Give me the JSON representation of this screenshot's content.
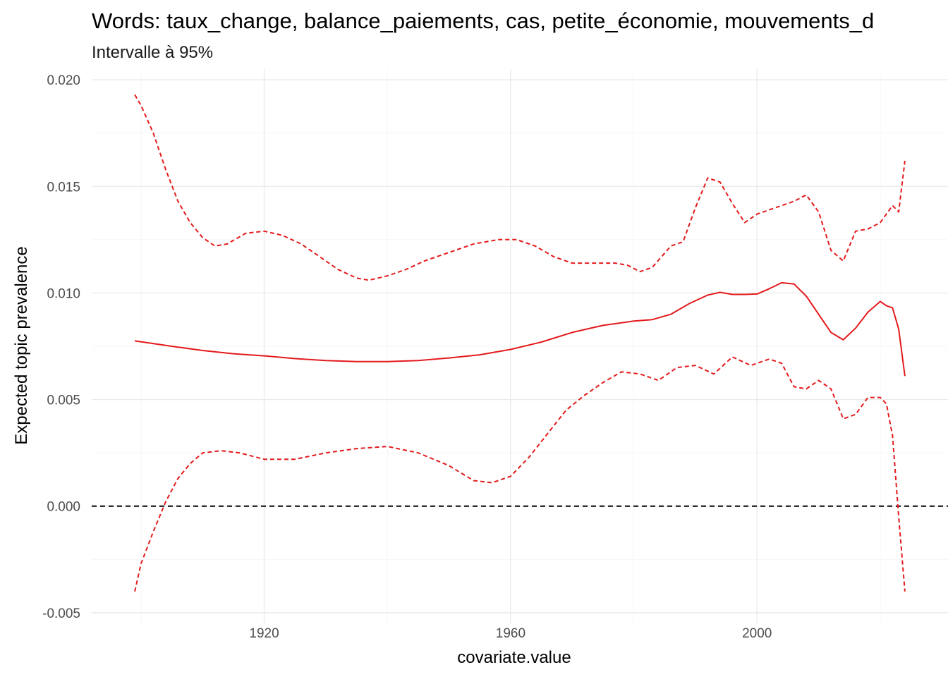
{
  "chart_data": {
    "type": "line",
    "title": "Words: taux_change, balance_paiements, cas, petite_économie, mouvements_d",
    "subtitle": "Intervalle à 95%",
    "xlabel": "covariate.value",
    "ylabel": "Expected topic prevalence",
    "xlim": [
      1892,
      2031
    ],
    "ylim": [
      -0.0055,
      0.0205
    ],
    "x_ticks": [
      1920,
      1960,
      2000
    ],
    "x_tick_labels": [
      "1920",
      "1960",
      "2000"
    ],
    "y_ticks": [
      -0.005,
      0.0,
      0.005,
      0.01,
      0.015,
      0.02
    ],
    "y_tick_labels": [
      "-0.005",
      "0.000",
      "0.005",
      "0.010",
      "0.015",
      "0.020"
    ],
    "grid": true,
    "reference_line": {
      "y": 0.0,
      "style": "dashed",
      "color": "#000000"
    },
    "series": [
      {
        "role": "estimate",
        "style": "solid",
        "color": "#e41a1c",
        "x": [
          1899,
          1905,
          1910,
          1915,
          1920,
          1925,
          1930,
          1935,
          1940,
          1945,
          1950,
          1955,
          1960,
          1965,
          1970,
          1975,
          1980,
          1983,
          1986,
          1989,
          1992,
          1994,
          1996,
          1998,
          2000,
          2002,
          2004,
          2006,
          2008,
          2010,
          2012,
          2014,
          2016,
          2018,
          2020,
          2021,
          2022,
          2023,
          2024
        ],
        "y": [
          0.00775,
          0.0075,
          0.0073,
          0.00715,
          0.00705,
          0.00692,
          0.00683,
          0.00678,
          0.00678,
          0.00683,
          0.00695,
          0.0071,
          0.00735,
          0.0077,
          0.00815,
          0.00848,
          0.00868,
          0.00875,
          0.009,
          0.0095,
          0.0099,
          0.01003,
          0.00993,
          0.00993,
          0.00995,
          0.0102,
          0.01048,
          0.01042,
          0.00985,
          0.009,
          0.00815,
          0.0078,
          0.00835,
          0.0091,
          0.0096,
          0.0094,
          0.0093,
          0.0083,
          0.0061
        ]
      },
      {
        "role": "upper",
        "style": "dashed",
        "color": "#e41a1c",
        "x": [
          1899,
          1900,
          1902,
          1904,
          1906,
          1908,
          1910,
          1912,
          1914,
          1917,
          1920,
          1923,
          1926,
          1929,
          1932,
          1935,
          1937,
          1940,
          1943,
          1946,
          1950,
          1954,
          1958,
          1961,
          1964,
          1967,
          1970,
          1974,
          1977,
          1979,
          1981,
          1983,
          1986,
          1988,
          1990,
          1992,
          1994,
          1996,
          1998,
          2000,
          2002,
          2004,
          2006,
          2008,
          2010,
          2012,
          2014,
          2016,
          2018,
          2020,
          2022,
          2023,
          2024
        ],
        "y": [
          0.0193,
          0.0188,
          0.0175,
          0.0158,
          0.0143,
          0.0133,
          0.0126,
          0.0122,
          0.0123,
          0.0128,
          0.0129,
          0.0127,
          0.0123,
          0.0117,
          0.0111,
          0.0107,
          0.0106,
          0.0108,
          0.0111,
          0.0115,
          0.0119,
          0.0123,
          0.0125,
          0.0125,
          0.0122,
          0.0117,
          0.0114,
          0.0114,
          0.0114,
          0.0113,
          0.011,
          0.0112,
          0.0122,
          0.0124,
          0.014,
          0.0154,
          0.0152,
          0.0142,
          0.0133,
          0.0137,
          0.0139,
          0.0141,
          0.0143,
          0.0146,
          0.0138,
          0.012,
          0.0115,
          0.0129,
          0.013,
          0.0133,
          0.0141,
          0.0138,
          0.0162
        ]
      },
      {
        "role": "lower",
        "style": "dashed",
        "color": "#e41a1c",
        "x": [
          1899,
          1900,
          1902,
          1904,
          1906,
          1908,
          1910,
          1913,
          1916,
          1920,
          1925,
          1930,
          1935,
          1940,
          1945,
          1950,
          1954,
          1957,
          1960,
          1963,
          1966,
          1969,
          1972,
          1975,
          1978,
          1981,
          1984,
          1987,
          1990,
          1993,
          1996,
          1999,
          2002,
          2004,
          2006,
          2008,
          2010,
          2012,
          2014,
          2016,
          2018,
          2020,
          2021,
          2022,
          2023,
          2024
        ],
        "y": [
          -0.004,
          -0.0027,
          -0.0012,
          0.0002,
          0.0013,
          0.002,
          0.0025,
          0.0026,
          0.0025,
          0.0022,
          0.0022,
          0.0025,
          0.0027,
          0.0028,
          0.0025,
          0.0019,
          0.0012,
          0.0011,
          0.0014,
          0.0023,
          0.0034,
          0.0045,
          0.0052,
          0.0058,
          0.0063,
          0.0062,
          0.0059,
          0.0065,
          0.0066,
          0.0062,
          0.007,
          0.0066,
          0.0069,
          0.0067,
          0.0056,
          0.0055,
          0.0059,
          0.0055,
          0.0041,
          0.0043,
          0.0051,
          0.0051,
          0.0048,
          0.0033,
          -0.0005,
          -0.004
        ]
      }
    ]
  }
}
